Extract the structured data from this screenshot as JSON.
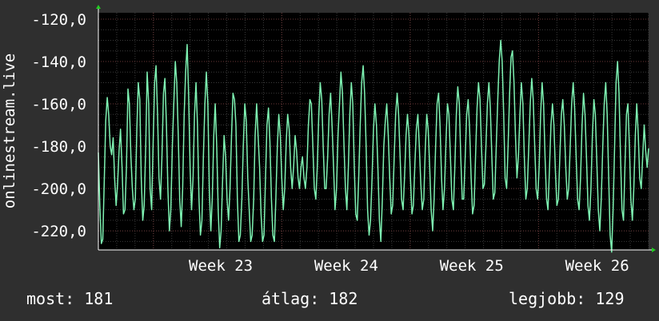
{
  "chart_data": {
    "type": "line",
    "ylabel": "onlinestream.live",
    "ylim": [
      -229,
      -117
    ],
    "yticks": [
      -120,
      -140,
      -160,
      -180,
      -200,
      -220
    ],
    "ytick_labels": [
      "-120,0",
      "-140,0",
      "-160,0",
      "-180,0",
      "-200,0",
      "-220,0"
    ],
    "xlim": [
      0,
      100
    ],
    "xticks": [
      {
        "label": "Week 23",
        "pos": 20.5
      },
      {
        "label": "Week 24",
        "pos": 43.3
      },
      {
        "label": "Week 25",
        "pos": 66.1
      },
      {
        "label": "Week 26",
        "pos": 88.9
      }
    ],
    "grid": true,
    "series": [
      {
        "color": "#7ef2b2",
        "values": [
          -183,
          -208,
          -226,
          -224,
          -196,
          -168,
          -157,
          -165,
          -180,
          -184,
          -176,
          -195,
          -208,
          -198,
          -182,
          -172,
          -190,
          -212,
          -210,
          -190,
          -153,
          -160,
          -185,
          -200,
          -210,
          -205,
          -172,
          -150,
          -158,
          -195,
          -215,
          -208,
          -180,
          -145,
          -160,
          -200,
          -210,
          -180,
          -150,
          -142,
          -165,
          -195,
          -205,
          -185,
          -155,
          -148,
          -170,
          -200,
          -220,
          -210,
          -180,
          -160,
          -140,
          -150,
          -175,
          -205,
          -218,
          -200,
          -165,
          -145,
          -132,
          -155,
          -190,
          -210,
          -195,
          -165,
          -150,
          -170,
          -205,
          -222,
          -215,
          -185,
          -160,
          -145,
          -160,
          -200,
          -220,
          -205,
          -175,
          -160,
          -180,
          -210,
          -228,
          -220,
          -195,
          -175,
          -185,
          -205,
          -215,
          -200,
          -175,
          -155,
          -158,
          -170,
          -205,
          -225,
          -222,
          -205,
          -180,
          -160,
          -168,
          -195,
          -210,
          -225,
          -222,
          -205,
          -175,
          -160,
          -175,
          -190,
          -212,
          -225,
          -222,
          -195,
          -170,
          -162,
          -178,
          -205,
          -222,
          -225,
          -205,
          -180,
          -165,
          -175,
          -195,
          -210,
          -200,
          -178,
          -165,
          -172,
          -190,
          -200,
          -190,
          -175,
          -182,
          -195,
          -200,
          -190,
          -185,
          -195,
          -200,
          -190,
          -170,
          -158,
          -160,
          -180,
          -200,
          -205,
          -190,
          -165,
          -150,
          -158,
          -180,
          -200,
          -200,
          -185,
          -165,
          -155,
          -170,
          -190,
          -210,
          -200,
          -175,
          -160,
          -145,
          -155,
          -178,
          -200,
          -210,
          -190,
          -165,
          -150,
          -160,
          -190,
          -212,
          -215,
          -195,
          -170,
          -150,
          -142,
          -155,
          -180,
          -210,
          -222,
          -215,
          -195,
          -172,
          -160,
          -170,
          -190,
          -215,
          -225,
          -205,
          -180,
          -168,
          -160,
          -175,
          -195,
          -212,
          -208,
          -185,
          -165,
          -155,
          -165,
          -185,
          -205,
          -210,
          -195,
          -175,
          -165,
          -175,
          -195,
          -212,
          -208,
          -188,
          -172,
          -165,
          -180,
          -198,
          -210,
          -205,
          -182,
          -165,
          -172,
          -190,
          -210,
          -220,
          -205,
          -180,
          -160,
          -155,
          -170,
          -195,
          -210,
          -200,
          -178,
          -160,
          -165,
          -185,
          -205,
          -210,
          -190,
          -165,
          -152,
          -160,
          -185,
          -205,
          -205,
          -185,
          -165,
          -158,
          -172,
          -195,
          -212,
          -208,
          -185,
          -162,
          -150,
          -158,
          -180,
          -200,
          -198,
          -180,
          -160,
          -150,
          -162,
          -185,
          -205,
          -202,
          -180,
          -158,
          -140,
          -130,
          -140,
          -165,
          -195,
          -200,
          -180,
          -155,
          -138,
          -135,
          -150,
          -175,
          -195,
          -185,
          -165,
          -150,
          -160,
          -185,
          -205,
          -200,
          -180,
          -160,
          -148,
          -158,
          -180,
          -200,
          -205,
          -190,
          -165,
          -150,
          -160,
          -185,
          -205,
          -210,
          -190,
          -170,
          -160,
          -170,
          -192,
          -208,
          -205,
          -185,
          -165,
          -158,
          -170,
          -190,
          -205,
          -200,
          -180,
          -160,
          -150,
          -162,
          -185,
          -205,
          -210,
          -195,
          -170,
          -155,
          -165,
          -185,
          -208,
          -215,
          -200,
          -175,
          -158,
          -165,
          -188,
          -210,
          -220,
          -205,
          -180,
          -160,
          -150,
          -165,
          -195,
          -222,
          -230,
          -210,
          -180,
          -150,
          -140,
          -155,
          -185,
          -210,
          -215,
          -190,
          -165,
          -160,
          -180,
          -205,
          -215,
          -200,
          -175,
          -160,
          -175,
          -195,
          -200,
          -185,
          -170,
          -182,
          -190,
          -181
        ]
      }
    ]
  },
  "stats": {
    "current": "most: 181",
    "average": "átlag: 182",
    "best": "legjobb: 129"
  },
  "colors": {
    "background": "#2f2f2f",
    "plot_background": "#000000",
    "line": "#7ef2b2",
    "grid_minor": "#3a3a3a",
    "grid_major": "#6a3838",
    "axis_arrow": "#22cc22"
  }
}
